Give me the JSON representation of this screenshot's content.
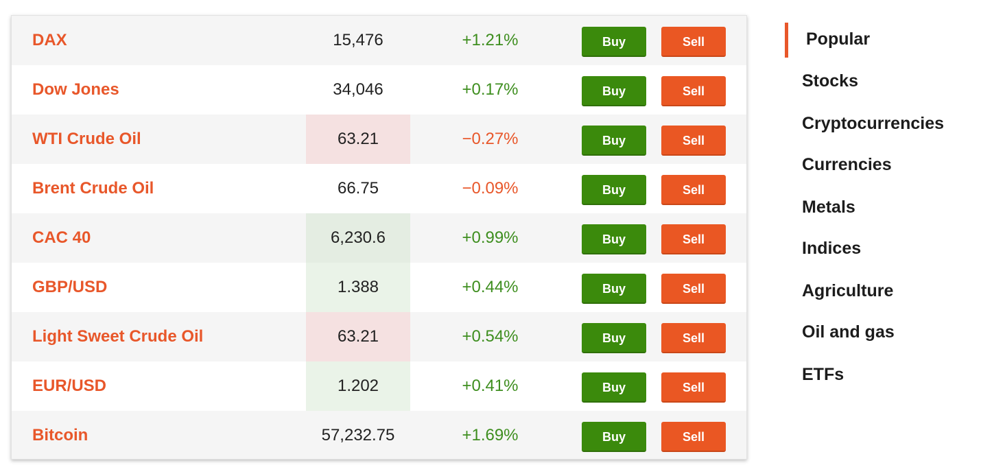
{
  "quotes": [
    {
      "name": "DAX",
      "price": "15,476",
      "change": "+1.21%",
      "buy": "Buy",
      "sell": "Sell"
    },
    {
      "name": "Dow Jones",
      "price": "34,046",
      "change": "+0.17%",
      "buy": "Buy",
      "sell": "Sell"
    },
    {
      "name": "WTI Crude Oil",
      "price": "63.21",
      "change": "−0.27%",
      "buy": "Buy",
      "sell": "Sell"
    },
    {
      "name": "Brent Crude Oil",
      "price": "66.75",
      "change": "−0.09%",
      "buy": "Buy",
      "sell": "Sell"
    },
    {
      "name": "CAC 40",
      "price": "6,230.6",
      "change": "+0.99%",
      "buy": "Buy",
      "sell": "Sell"
    },
    {
      "name": "GBP/USD",
      "price": "1.388",
      "change": "+0.44%",
      "buy": "Buy",
      "sell": "Sell"
    },
    {
      "name": "Light Sweet Crude Oil",
      "price": "63.21",
      "change": "+0.54%",
      "buy": "Buy",
      "sell": "Sell"
    },
    {
      "name": "EUR/USD",
      "price": "1.202",
      "change": "+0.41%",
      "buy": "Buy",
      "sell": "Sell"
    },
    {
      "name": "Bitcoin",
      "price": "57,232.75",
      "change": "+1.69%",
      "buy": "Buy",
      "sell": "Sell"
    }
  ],
  "nav": {
    "items": [
      {
        "label": "Popular"
      },
      {
        "label": "Stocks"
      },
      {
        "label": "Cryptocurrencies"
      },
      {
        "label": "Currencies"
      },
      {
        "label": "Metals"
      },
      {
        "label": "Indices"
      },
      {
        "label": "Agriculture"
      },
      {
        "label": "Oil and gas"
      },
      {
        "label": "ETFs"
      }
    ]
  },
  "colors": {
    "accent": "#e8572a",
    "buy": "#3b8a0c",
    "sell": "#ea5723",
    "positive": "#3e8e1f",
    "negative": "#e8572a",
    "price_down_bg": "#f5e1e1",
    "price_up_bg": "#e4ede2"
  }
}
